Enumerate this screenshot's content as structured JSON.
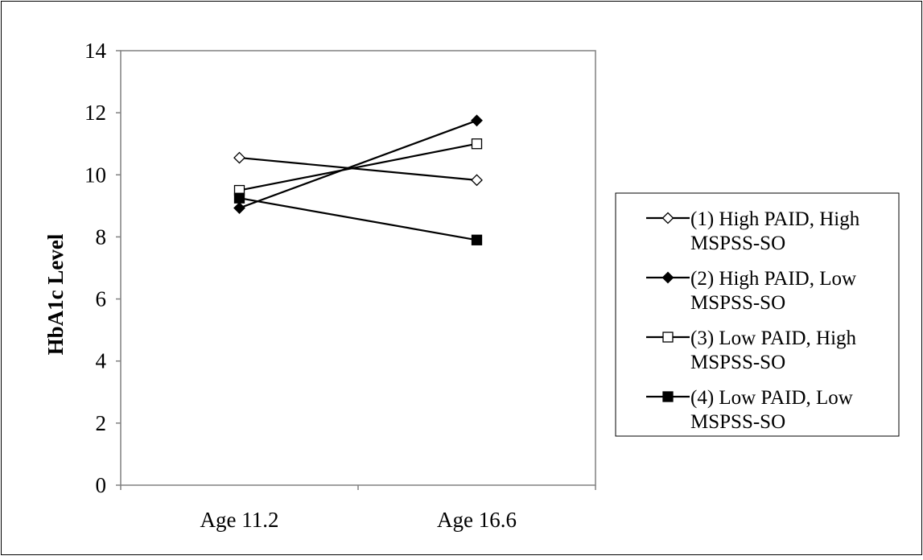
{
  "chart_data": {
    "type": "line",
    "title": "",
    "xlabel": "",
    "ylabel": "HbA1c Level",
    "categories": [
      "Age 11.2",
      "Age 16.6"
    ],
    "ylim": [
      0,
      14
    ],
    "yticks": [
      0,
      2,
      4,
      6,
      8,
      10,
      12,
      14
    ],
    "grid": false,
    "legend_position": "right",
    "series": [
      {
        "name": "(1) High PAID, High MSPSS-SO",
        "name_lines": [
          "(1) High PAID, High",
          "MSPSS-SO"
        ],
        "marker": "diamond-open",
        "values": [
          10.55,
          9.83
        ]
      },
      {
        "name": "(2) High PAID, Low MSPSS-SO",
        "name_lines": [
          "(2) High PAID, Low",
          "MSPSS-SO"
        ],
        "marker": "diamond-filled",
        "values": [
          8.93,
          11.75
        ]
      },
      {
        "name": "(3) Low PAID, High MSPSS-SO",
        "name_lines": [
          "(3) Low PAID, High",
          "MSPSS-SO"
        ],
        "marker": "square-open",
        "values": [
          9.5,
          11.0
        ]
      },
      {
        "name": "(4) Low PAID, Low MSPSS-SO",
        "name_lines": [
          "(4) Low PAID, Low",
          "MSPSS-SO"
        ],
        "marker": "square-filled",
        "values": [
          9.25,
          7.9
        ]
      }
    ],
    "colors": {
      "line": "#000000",
      "axis": "#808080",
      "frame": "#000000",
      "background": "#ffffff"
    }
  }
}
